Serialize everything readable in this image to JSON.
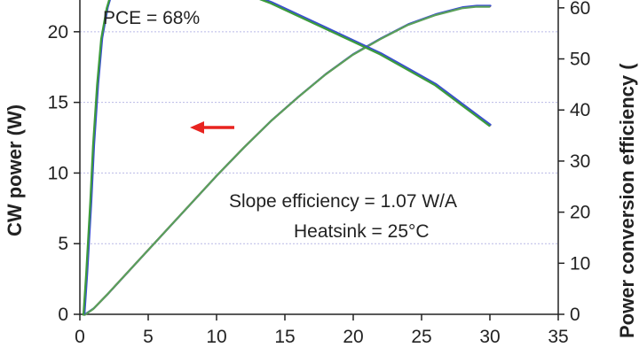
{
  "chart_data": {
    "type": "line",
    "x": {
      "label": "",
      "range": [
        0,
        35
      ],
      "ticks": [
        0,
        5,
        10,
        15,
        20,
        25,
        30,
        35
      ],
      "tick_labels": [
        "0",
        "5",
        "10",
        "15",
        "20",
        "25",
        "30",
        "35"
      ]
    },
    "y_left": {
      "label": "CW power (W)",
      "range": [
        0,
        23.5
      ],
      "ticks": [
        0,
        5,
        10,
        15,
        20
      ],
      "tick_labels": [
        "0",
        "5",
        "10",
        "15",
        "20"
      ]
    },
    "y_right": {
      "label": "Power conversion efficiency (",
      "range": [
        0,
        65
      ],
      "ticks": [
        0,
        10,
        20,
        30,
        40,
        50,
        60
      ],
      "tick_labels": [
        "0",
        "10",
        "20",
        "30",
        "40",
        "50",
        "60"
      ]
    },
    "grid": "horizontal dotted lines at left-axis ticks",
    "series": [
      {
        "axis": "left",
        "colors": [
          "#e8231f",
          "#3a4fd0",
          "#5aa05a"
        ],
        "points": [
          [
            0.4,
            0
          ],
          [
            1,
            0.4
          ],
          [
            2,
            1.4
          ],
          [
            4,
            3.5
          ],
          [
            6,
            5.6
          ],
          [
            8,
            7.7
          ],
          [
            10,
            9.8
          ],
          [
            12,
            11.8
          ],
          [
            14,
            13.7
          ],
          [
            16,
            15.4
          ],
          [
            18,
            17.0
          ],
          [
            20,
            18.4
          ],
          [
            22,
            19.5
          ],
          [
            24,
            20.5
          ],
          [
            26,
            21.2
          ],
          [
            28,
            21.7
          ],
          [
            29,
            21.8
          ],
          [
            30,
            21.8
          ]
        ]
      },
      {
        "axis": "right",
        "colors": [
          "#e8231f",
          "#3a4fd0",
          "#3c9b3c"
        ],
        "points": [
          [
            0.3,
            0
          ],
          [
            0.5,
            8
          ],
          [
            0.8,
            22
          ],
          [
            1.0,
            33
          ],
          [
            1.3,
            45
          ],
          [
            1.6,
            54
          ],
          [
            2.0,
            60
          ],
          [
            2.5,
            64.5
          ],
          [
            3,
            66.5
          ],
          [
            4,
            67.5
          ],
          [
            6,
            67.5
          ],
          [
            8,
            66.5
          ],
          [
            10,
            65
          ],
          [
            12,
            63
          ],
          [
            14,
            61
          ],
          [
            16,
            58.5
          ],
          [
            18,
            56
          ],
          [
            20,
            53.5
          ],
          [
            22,
            51
          ],
          [
            24,
            48
          ],
          [
            26,
            45
          ],
          [
            28,
            41
          ],
          [
            30,
            37
          ]
        ]
      }
    ],
    "annotations": [
      {
        "text": "PCE = 68%"
      },
      {
        "text": "Slope efficiency = 1.07 W/A"
      },
      {
        "text": "Heatsink = 25°C"
      }
    ],
    "arrow": {
      "direction": "left",
      "color": "#e8231f"
    }
  }
}
